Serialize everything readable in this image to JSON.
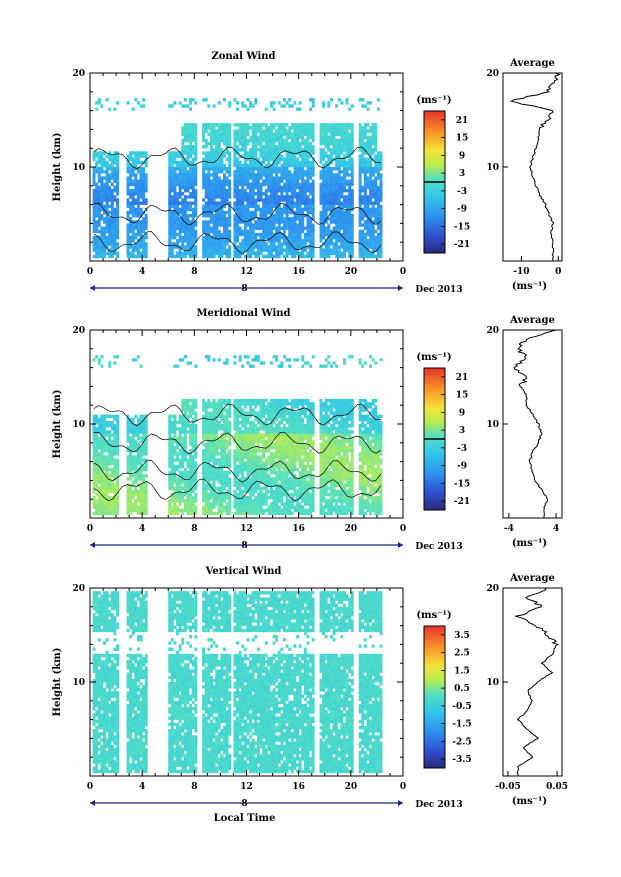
{
  "chart_data": [
    {
      "type": "heatmap",
      "title": "Zonal Wind",
      "ylabel": "Height (km)",
      "ylim": [
        0,
        20
      ],
      "yticks": [
        "20",
        "10"
      ],
      "xlim": [
        0,
        24
      ],
      "xticks": [
        "0",
        "4",
        "8",
        "12",
        "16",
        "20",
        "0"
      ],
      "date_marker": "8",
      "date_label": "Dec 2013",
      "colorbar": {
        "unit": "(ms⁻¹)",
        "ticks": [
          "21",
          "15",
          "9",
          "3",
          "-3",
          "-9",
          "-15",
          "-21"
        ],
        "range": [
          -24,
          24
        ],
        "contour_level": 0
      },
      "profile": {
        "title": "Average",
        "xlabel": "(ms⁻¹)",
        "xticks": [
          "-10",
          "0"
        ],
        "xlim": [
          -15,
          1
        ],
        "height": [
          1,
          2,
          3,
          4,
          5,
          6,
          7,
          8,
          9,
          10,
          11,
          12,
          13,
          14,
          15,
          16,
          17,
          18,
          19,
          20
        ],
        "value": [
          -1.5,
          -1.5,
          -2,
          -1.5,
          -2.5,
          -3.5,
          -5,
          -6,
          -7,
          -7.5,
          -7,
          -6,
          -5.5,
          -5,
          -3,
          -2,
          -13,
          -3,
          -1,
          0
        ]
      }
    },
    {
      "type": "heatmap",
      "title": "Meridional Wind",
      "ylabel": "Height (km)",
      "ylim": [
        0,
        20
      ],
      "yticks": [
        "20",
        "10"
      ],
      "xlim": [
        0,
        24
      ],
      "xticks": [
        "0",
        "4",
        "8",
        "12",
        "16",
        "20",
        "0"
      ],
      "date_marker": "8",
      "date_label": "Dec 2013",
      "colorbar": {
        "unit": "(ms⁻¹)",
        "ticks": [
          "21",
          "15",
          "9",
          "3",
          "-3",
          "-9",
          "-15",
          "-21"
        ],
        "range": [
          -24,
          24
        ],
        "contour_level": 0
      },
      "profile": {
        "title": "Average",
        "xlabel": "(ms⁻¹)",
        "xticks": [
          "-4",
          "4"
        ],
        "xlim": [
          -5,
          5
        ],
        "height": [
          1,
          2,
          3,
          4,
          5,
          6,
          7,
          8,
          9,
          10,
          11,
          12,
          13,
          14,
          15,
          16,
          17,
          18,
          19,
          20
        ],
        "value": [
          2,
          2.5,
          1.5,
          0.5,
          0,
          -0.5,
          0,
          1,
          1.5,
          1,
          0,
          -1,
          -1,
          -2,
          -1,
          -3,
          -1,
          -2.5,
          -1,
          4
        ]
      }
    },
    {
      "type": "heatmap",
      "title": "Vertical Wind",
      "ylabel": "Height (km)",
      "xlabel": "Local Time",
      "ylim": [
        0,
        20
      ],
      "yticks": [
        "20",
        "10"
      ],
      "xlim": [
        0,
        24
      ],
      "xticks": [
        "0",
        "4",
        "8",
        "12",
        "16",
        "20",
        "0"
      ],
      "date_marker": "8",
      "date_label": "Dec 2013",
      "colorbar": {
        "unit": "(ms⁻¹)",
        "ticks": [
          "3.5",
          "2.5",
          "1.5",
          "0.5",
          "-0.5",
          "-1.5",
          "-2.5",
          "-3.5"
        ],
        "range": [
          -4,
          4
        ]
      },
      "profile": {
        "title": "Average",
        "xlabel": "(ms⁻¹)",
        "xticks": [
          "-0.05",
          "0.05"
        ],
        "xlim": [
          -0.06,
          0.06
        ],
        "height": [
          1,
          2,
          3,
          4,
          5,
          6,
          7,
          8,
          9,
          10,
          11,
          12,
          13,
          14,
          15,
          16,
          17,
          18,
          19,
          20
        ],
        "value": [
          -0.03,
          0.0,
          -0.02,
          0.01,
          -0.01,
          -0.03,
          -0.01,
          0.0,
          -0.01,
          0.01,
          0.04,
          0.02,
          0.04,
          0.05,
          0.03,
          0.01,
          -0.03,
          0.02,
          -0.01,
          0.03
        ]
      }
    }
  ]
}
